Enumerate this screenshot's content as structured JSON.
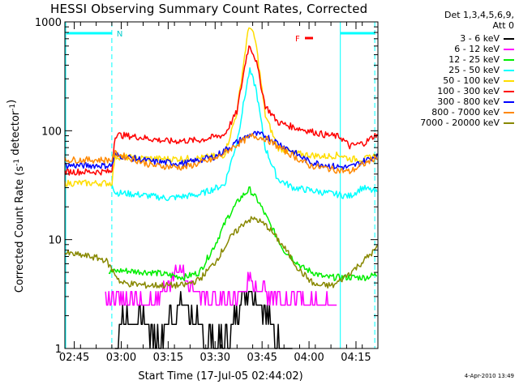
{
  "header": {
    "title": "HESSI Observing Summary Count Rates, Corrected",
    "legend_title_line1": "Det 1,3,4,5,6,9,",
    "legend_title_line2": "Att 0",
    "timestamp": "4-Apr-2010 13:49"
  },
  "chart_data": {
    "type": "line",
    "title": "HESSI Observing Summary Count Rates, Corrected",
    "xlabel": "Start Time (17-Jul-05 02:44:02)",
    "ylabel": "Corrected Count Rate (s⁻¹ detector⁻¹)",
    "y_scale": "log",
    "ylim": [
      1,
      1000
    ],
    "y_ticks": [
      {
        "value": 1,
        "label": "1"
      },
      {
        "value": 10,
        "label": "10"
      },
      {
        "value": 100,
        "label": "100"
      },
      {
        "value": 1000,
        "label": "1000"
      }
    ],
    "xlim": [
      "02:42",
      "04:22"
    ],
    "x_ticks": [
      "02:45",
      "03:00",
      "03:15",
      "03:30",
      "03:45",
      "04:00",
      "04:15"
    ],
    "annotations": {
      "night_label": "N",
      "flare_label": "F",
      "night_start": "02:57",
      "night_end": "04:21",
      "day_start": "04:10"
    },
    "legend_position": "right",
    "series": [
      {
        "name": "3 - 6 keV",
        "color": "#000000",
        "x": [
          "02:58",
          "03:00",
          "03:05",
          "03:08",
          "03:12",
          "03:16",
          "03:20",
          "03:25",
          "03:30",
          "03:35",
          "03:38",
          "03:41",
          "03:44",
          "03:47",
          "03:50",
          "03:55"
        ],
        "y": [
          1.3,
          1.9,
          1.9,
          1.9,
          1.3,
          2.0,
          2.6,
          1.6,
          1.3,
          1.6,
          2.7,
          3.7,
          2.6,
          2.0,
          1.3,
          1.2
        ]
      },
      {
        "name": "6 - 12 keV",
        "color": "#ff00ff",
        "x": [
          "02:55",
          "03:00",
          "03:08",
          "03:12",
          "03:15",
          "03:18",
          "03:22",
          "03:28",
          "03:34",
          "03:37",
          "03:41",
          "03:45",
          "03:50",
          "03:55",
          "04:00",
          "04:05",
          "04:09"
        ],
        "y": [
          2.7,
          2.7,
          2.7,
          3.0,
          3.8,
          6.0,
          3.8,
          2.9,
          2.7,
          3.0,
          4.0,
          3.5,
          3.0,
          2.7,
          2.7,
          2.7,
          2.7
        ]
      },
      {
        "name": "12 - 25 keV",
        "color": "#00ee00",
        "x": [
          "02:56",
          "03:00",
          "03:10",
          "03:20",
          "03:25",
          "03:30",
          "03:34",
          "03:38",
          "03:41",
          "03:44",
          "03:48",
          "03:52",
          "03:58",
          "04:05",
          "04:10",
          "04:18",
          "04:22"
        ],
        "y": [
          5.0,
          5.2,
          5.0,
          4.5,
          5.0,
          9.0,
          16,
          24,
          29,
          22,
          13,
          8.0,
          5.5,
          4.5,
          4.5,
          4.5,
          4.8
        ]
      },
      {
        "name": "25 - 50 keV",
        "color": "#00ffff",
        "x": [
          "02:57",
          "02:58",
          "03:05",
          "03:15",
          "03:25",
          "03:33",
          "03:37",
          "03:40",
          "03:41",
          "03:43",
          "03:46",
          "03:50",
          "03:55",
          "04:05",
          "04:13",
          "04:17",
          "04:22"
        ],
        "y": [
          34,
          27,
          26,
          24,
          26,
          32,
          80,
          250,
          360,
          250,
          70,
          36,
          30,
          27,
          25,
          30,
          27
        ]
      },
      {
        "name": "50 - 100 keV",
        "color": "#ffdd00",
        "x": [
          "02:42",
          "02:57",
          "02:58",
          "03:05",
          "03:15",
          "03:25",
          "03:33",
          "03:37",
          "03:40",
          "03:41",
          "03:43",
          "03:46",
          "03:50",
          "03:55",
          "04:05",
          "04:10",
          "04:13",
          "04:18",
          "04:22"
        ],
        "y": [
          33,
          33,
          58,
          56,
          55,
          56,
          60,
          150,
          650,
          950,
          650,
          140,
          70,
          62,
          58,
          60,
          55,
          55,
          60
        ]
      },
      {
        "name": "100 - 300 keV",
        "color": "#ff0000",
        "x": [
          "02:42",
          "02:57",
          "02:58",
          "03:05",
          "03:15",
          "03:25",
          "03:33",
          "03:37",
          "03:40",
          "03:41",
          "03:43",
          "03:46",
          "03:50",
          "03:55",
          "04:05",
          "04:10",
          "04:13",
          "04:18",
          "04:22"
        ],
        "y": [
          42,
          42,
          92,
          88,
          80,
          82,
          92,
          150,
          480,
          620,
          450,
          170,
          120,
          108,
          92,
          88,
          72,
          78,
          95
        ]
      },
      {
        "name": "300 - 800 keV",
        "color": "#0000ff",
        "x": [
          "02:42",
          "02:57",
          "02:58",
          "03:10",
          "03:20",
          "03:30",
          "03:38",
          "03:42",
          "03:46",
          "03:52",
          "04:00",
          "04:08",
          "04:13",
          "04:22"
        ],
        "y": [
          48,
          48,
          60,
          52,
          50,
          58,
          82,
          94,
          90,
          72,
          52,
          47,
          46,
          60
        ]
      },
      {
        "name": "800 - 7000 keV",
        "color": "#ff8800",
        "x": [
          "02:42",
          "02:57",
          "02:58",
          "03:10",
          "03:20",
          "03:30",
          "03:38",
          "03:42",
          "03:46",
          "03:52",
          "04:00",
          "04:08",
          "04:13",
          "04:22"
        ],
        "y": [
          54,
          54,
          62,
          48,
          46,
          55,
          78,
          90,
          85,
          66,
          48,
          44,
          42,
          58
        ]
      },
      {
        "name": "7000 - 20000 keV",
        "color": "#888800",
        "x": [
          "02:42",
          "02:50",
          "02:55",
          "03:00",
          "03:08",
          "03:15",
          "03:20",
          "03:25",
          "03:30",
          "03:35",
          "03:40",
          "03:43",
          "03:47",
          "03:52",
          "03:57",
          "04:02",
          "04:08",
          "04:15",
          "04:22"
        ],
        "y": [
          7.5,
          7.0,
          6.5,
          4.0,
          3.8,
          3.8,
          3.8,
          4.3,
          6.2,
          10.5,
          15,
          15.5,
          13,
          8.5,
          5.2,
          3.8,
          3.8,
          5.5,
          8.5
        ]
      }
    ]
  }
}
